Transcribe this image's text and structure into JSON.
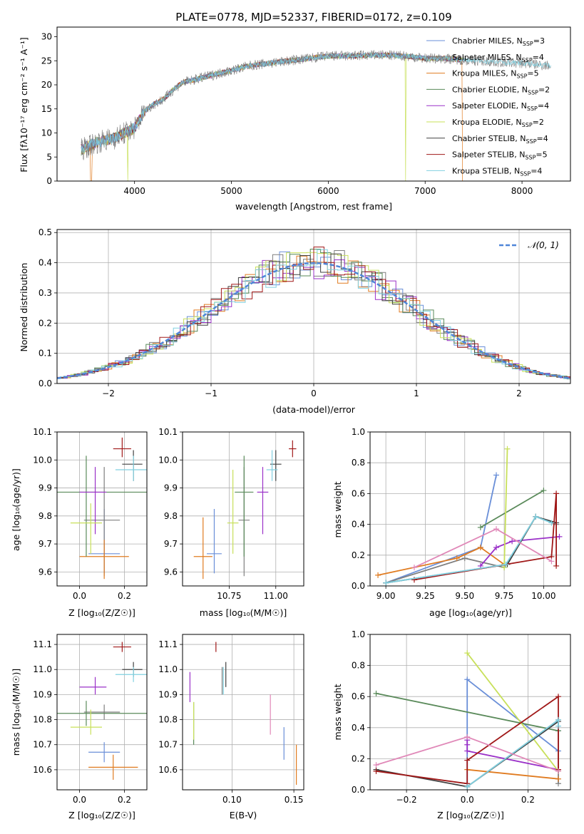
{
  "figure_title": "PLATE=0778, MJD=52337, FIBERID=0172, z=0.109",
  "models": [
    {
      "legend": "Chabrier MILES, N",
      "nssp": "=3",
      "color": "#6a8fd8"
    },
    {
      "legend": "Salpeter MILES, N",
      "nssp": "=4",
      "color": "#7f7f7f"
    },
    {
      "legend": "Kroupa MILES, N",
      "nssp": "=5",
      "color": "#e07b20"
    },
    {
      "legend": "Chabrier ELODIE, N",
      "nssp": "=2",
      "color": "#5a8a5a"
    },
    {
      "legend": "Salpeter ELODIE, N",
      "nssp": "=4",
      "color": "#9a30c8"
    },
    {
      "legend": "Kroupa ELODIE, N",
      "nssp": "=2",
      "color": "#c8e05a"
    },
    {
      "legend": "Chabrier STELIB, N",
      "nssp": "=4",
      "color": "#404040"
    },
    {
      "legend": "Salpeter STELIB, N",
      "nssp": "=5",
      "color": "#a01818"
    },
    {
      "legend": "Kroupa STELIB, N",
      "nssp": "=4",
      "color": "#80d0e0"
    }
  ],
  "ssp_subscript": "SSP",
  "chart_data": [
    {
      "id": "spectrum",
      "type": "line",
      "xlabel": "wavelength [Angstrom, rest frame]",
      "ylabel": "Flux [fλ10⁻¹⁷ erg cm⁻² s⁻¹ A⁻¹]",
      "xlim": [
        3200,
        8500
      ],
      "ylim": [
        0,
        32
      ],
      "xticks": [
        4000,
        5000,
        6000,
        7000,
        8000
      ],
      "yticks": [
        0,
        5,
        10,
        15,
        20,
        25,
        30
      ],
      "continuum": {
        "x": [
          3450,
          3600,
          3700,
          3800,
          3900,
          4000,
          4100,
          4200,
          4300,
          4400,
          4500,
          4600,
          4800,
          5000,
          5200,
          5400,
          5600,
          5800,
          6000,
          6200,
          6500,
          6800,
          7000,
          7200,
          7500,
          8000,
          8300
        ],
        "y": [
          6.5,
          8,
          8.5,
          9,
          10,
          11,
          14.5,
          16,
          17,
          19,
          20.5,
          21,
          22,
          23,
          24,
          24.5,
          25,
          25.5,
          26,
          26,
          26.2,
          26,
          25.5,
          25.5,
          25,
          24.5,
          24
        ]
      },
      "dips": [
        {
          "x": 3930,
          "y": 0
        },
        {
          "x": 6800,
          "y": 0
        },
        {
          "x": 7420,
          "y": 0
        }
      ]
    },
    {
      "id": "residuals",
      "type": "histogram",
      "xlabel": "(data-model)/error",
      "ylabel": "Normed distribution",
      "xlim": [
        -2.5,
        2.5
      ],
      "ylim": [
        0,
        0.51
      ],
      "bin_width": 0.1,
      "xticks": [
        -2,
        -1,
        0,
        1,
        2
      ],
      "yticks": [
        0.0,
        0.1,
        0.2,
        0.3,
        0.4,
        0.5
      ],
      "reference_curve": {
        "name": "𝒩(0, 1)",
        "mean": 0,
        "sigma": 1,
        "color": "#4f86d8"
      }
    },
    {
      "id": "age_vs_Z",
      "type": "errorbar",
      "xlabel": "Z [log₁₀(Z/Z☉)]",
      "ylabel": "age  [log₁₀(age/yr)]",
      "xlim": [
        -0.1,
        0.3
      ],
      "ylim": [
        9.55,
        10.1
      ],
      "xticks": [
        0.0,
        0.2
      ],
      "yticks": [
        9.6,
        9.7,
        9.8,
        9.9,
        10.0,
        10.1
      ],
      "points": [
        {
          "x": 0.11,
          "y": 9.665,
          "xerr": [
            0.07,
            0.07
          ],
          "yerr": [
            0.07,
            0.16
          ],
          "model": 0
        },
        {
          "x": 0.11,
          "y": 9.785,
          "xerr": [
            0.09,
            0.07
          ],
          "yerr": [
            0.2,
            0.19
          ],
          "model": 1
        },
        {
          "x": 0.11,
          "y": 9.655,
          "xerr": [
            0.11,
            0.11
          ],
          "yerr": [
            0.08,
            0.06
          ],
          "model": 2
        },
        {
          "x": 0.03,
          "y": 9.885,
          "xerr": [
            0.13,
            0.27
          ],
          "yerr": [
            0.23,
            0.13
          ],
          "model": 3
        },
        {
          "x": 0.07,
          "y": 9.885,
          "xerr": [
            0.07,
            0.05
          ],
          "yerr": [
            0.15,
            0.09
          ],
          "model": 4
        },
        {
          "x": 0.05,
          "y": 9.775,
          "xerr": [
            0.09,
            0.05
          ],
          "yerr": [
            0.11,
            0.07
          ],
          "model": 5
        },
        {
          "x": 0.24,
          "y": 9.985,
          "xerr": [
            0.05,
            0.04
          ],
          "yerr": [
            0.06,
            0.05
          ],
          "model": 6
        },
        {
          "x": 0.19,
          "y": 10.04,
          "xerr": [
            0.04,
            0.04
          ],
          "yerr": [
            0.03,
            0.04
          ],
          "model": 7
        },
        {
          "x": 0.24,
          "y": 9.965,
          "xerr": [
            0.08,
            0.06
          ],
          "yerr": [
            0.04,
            0.05
          ],
          "model": 8
        }
      ]
    },
    {
      "id": "age_vs_mass",
      "type": "errorbar",
      "xlabel": "mass [log₁₀(M/M☉)]",
      "ylabel": "",
      "xlim": [
        10.5,
        11.15
      ],
      "ylim": [
        9.55,
        10.1
      ],
      "xticks": [
        10.75,
        11.0
      ],
      "yticks": [
        9.6,
        9.7,
        9.8,
        9.9,
        10.0,
        10.1
      ],
      "points": [
        {
          "x": 10.67,
          "y": 9.665,
          "xerr": [
            0.04,
            0.04
          ],
          "yerr": [
            0.07,
            0.16
          ],
          "model": 0
        },
        {
          "x": 10.83,
          "y": 9.785,
          "xerr": [
            0.03,
            0.03
          ],
          "yerr": [
            0.2,
            0.19
          ],
          "model": 1
        },
        {
          "x": 10.61,
          "y": 9.655,
          "xerr": [
            0.05,
            0.05
          ],
          "yerr": [
            0.08,
            0.14
          ],
          "model": 2
        },
        {
          "x": 10.83,
          "y": 9.885,
          "xerr": [
            0.05,
            0.05
          ],
          "yerr": [
            0.23,
            0.13
          ],
          "model": 3
        },
        {
          "x": 10.93,
          "y": 9.885,
          "xerr": [
            0.03,
            0.03
          ],
          "yerr": [
            0.15,
            0.09
          ],
          "model": 4
        },
        {
          "x": 10.77,
          "y": 9.775,
          "xerr": [
            0.03,
            0.03
          ],
          "yerr": [
            0.11,
            0.19
          ],
          "model": 5
        },
        {
          "x": 11.0,
          "y": 9.985,
          "xerr": [
            0.03,
            0.03
          ],
          "yerr": [
            0.06,
            0.05
          ],
          "model": 6
        },
        {
          "x": 11.09,
          "y": 10.04,
          "xerr": [
            0.02,
            0.02
          ],
          "yerr": [
            0.03,
            0.03
          ],
          "model": 7
        },
        {
          "x": 10.98,
          "y": 9.965,
          "xerr": [
            0.03,
            0.03
          ],
          "yerr": [
            0.04,
            0.07
          ],
          "model": 8
        }
      ]
    },
    {
      "id": "mass_weight_vs_age",
      "type": "line",
      "xlabel": "age  [log₁₀(age/yr)]",
      "ylabel": "mass weight",
      "xlim": [
        8.9,
        10.17
      ],
      "ylim": [
        0,
        1.0
      ],
      "xticks": [
        9.0,
        9.25,
        9.5,
        9.75,
        10.0
      ],
      "yticks": [
        0.0,
        0.2,
        0.4,
        0.6,
        0.8,
        1.0
      ],
      "series": [
        {
          "model": 0,
          "x": [
            9.0,
            9.6,
            9.7
          ],
          "y": [
            0.02,
            0.25,
            0.72
          ]
        },
        {
          "model": 1,
          "x": [
            9.0,
            9.5,
            9.75,
            9.95,
            10.08
          ],
          "y": [
            0.02,
            0.18,
            0.12,
            0.45,
            0.4
          ]
        },
        {
          "model": 2,
          "x": [
            8.95,
            9.45,
            9.6,
            9.75
          ],
          "y": [
            0.07,
            0.18,
            0.25,
            0.14
          ]
        },
        {
          "model": 3,
          "x": [
            9.6,
            10.0
          ],
          "y": [
            0.38,
            0.62
          ]
        },
        {
          "model": 4,
          "x": [
            9.6,
            9.7,
            9.8,
            10.1
          ],
          "y": [
            0.13,
            0.25,
            0.29,
            0.32
          ]
        },
        {
          "model": 5,
          "x": [
            9.75,
            9.77
          ],
          "y": [
            0.12,
            0.89
          ]
        },
        {
          "model": 6,
          "x": [
            9.0,
            9.77,
            9.95,
            10.08
          ],
          "y": [
            0.02,
            0.14,
            0.45,
            0.41
          ]
        },
        {
          "model": 7,
          "x": [
            9.18,
            10.05,
            10.08,
            10.08
          ],
          "y": [
            0.04,
            0.19,
            0.6,
            0.13
          ]
        },
        {
          "model": 8,
          "x": [
            9.0,
            9.76,
            9.95,
            10.05
          ],
          "y": [
            0.02,
            0.14,
            0.45,
            0.41
          ]
        },
        {
          "color": "#e088b8",
          "x": [
            9.18,
            9.7,
            10.05
          ],
          "y": [
            0.12,
            0.37,
            0.16
          ]
        }
      ]
    },
    {
      "id": "mass_vs_Z",
      "type": "errorbar",
      "xlabel": "Z [log₁₀(Z/Z☉)]",
      "ylabel": "mass [log₁₀(M/M☉)]",
      "xlim": [
        -0.1,
        0.3
      ],
      "ylim": [
        10.52,
        11.14
      ],
      "xticks": [
        0.0,
        0.2
      ],
      "yticks": [
        10.6,
        10.7,
        10.8,
        10.9,
        11.0,
        11.1
      ],
      "points": [
        {
          "x": 0.11,
          "y": 10.67,
          "xerr": [
            0.07,
            0.07
          ],
          "yerr": [
            0.04,
            0.04
          ],
          "model": 0
        },
        {
          "x": 0.11,
          "y": 10.83,
          "xerr": [
            0.09,
            0.07
          ],
          "yerr": [
            0.03,
            0.03
          ],
          "model": 1
        },
        {
          "x": 0.15,
          "y": 10.61,
          "xerr": [
            0.11,
            0.11
          ],
          "yerr": [
            0.05,
            0.05
          ],
          "model": 2
        },
        {
          "x": 0.03,
          "y": 10.825,
          "xerr": [
            0.13,
            0.27
          ],
          "yerr": [
            0.05,
            0.05
          ],
          "model": 3
        },
        {
          "x": 0.07,
          "y": 10.93,
          "xerr": [
            0.07,
            0.05
          ],
          "yerr": [
            0.03,
            0.04
          ],
          "model": 4
        },
        {
          "x": 0.05,
          "y": 10.77,
          "xerr": [
            0.09,
            0.05
          ],
          "yerr": [
            0.03,
            0.07
          ],
          "model": 5
        },
        {
          "x": 0.24,
          "y": 11.0,
          "xerr": [
            0.05,
            0.04
          ],
          "yerr": [
            0.03,
            0.03
          ],
          "model": 6
        },
        {
          "x": 0.19,
          "y": 11.09,
          "xerr": [
            0.04,
            0.04
          ],
          "yerr": [
            0.02,
            0.02
          ],
          "model": 7
        },
        {
          "x": 0.24,
          "y": 10.98,
          "xerr": [
            0.08,
            0.06
          ],
          "yerr": [
            0.03,
            0.03
          ],
          "model": 8
        }
      ]
    },
    {
      "id": "mass_vs_ebv",
      "type": "errorbar",
      "xlabel": "E(B-V)",
      "ylabel": "",
      "xlim": [
        0.06,
        0.158
      ],
      "ylim": [
        10.52,
        11.14
      ],
      "xticks": [
        0.1,
        0.15
      ],
      "yticks": [
        10.6,
        10.7,
        10.8,
        10.9,
        11.0,
        11.1
      ],
      "points": [
        {
          "x": 0.142,
          "y": 10.7,
          "yerr": [
            0.06,
            0.07
          ],
          "model": 0
        },
        {
          "x": 0.092,
          "y": 10.95,
          "yerr": [
            0.05,
            0.06
          ],
          "model": 1
        },
        {
          "x": 0.152,
          "y": 10.62,
          "yerr": [
            0.08,
            0.08
          ],
          "model": 2
        },
        {
          "x": 0.069,
          "y": 10.78,
          "yerr": [
            0.08,
            0.09
          ],
          "model": 3
        },
        {
          "x": 0.066,
          "y": 10.93,
          "yerr": [
            0.06,
            0.06
          ],
          "model": 4
        },
        {
          "x": 0.069,
          "y": 10.8,
          "yerr": [
            0.08,
            0.07
          ],
          "model": 5
        },
        {
          "x": 0.095,
          "y": 10.98,
          "yerr": [
            0.05,
            0.05
          ],
          "model": 6
        },
        {
          "x": 0.087,
          "y": 11.09,
          "yerr": [
            0.02,
            0.02
          ],
          "model": 7
        },
        {
          "x": 0.093,
          "y": 10.95,
          "yerr": [
            0.05,
            0.06
          ],
          "model": 8
        },
        {
          "x": 0.131,
          "y": 10.82,
          "yerr": [
            0.08,
            0.08
          ],
          "color": "#e088b8"
        }
      ]
    },
    {
      "id": "mass_weight_vs_Z",
      "type": "line",
      "xlabel": "Z [log₁₀(Z/Z☉)]",
      "ylabel": "mass weight",
      "xlim": [
        -0.32,
        0.34
      ],
      "ylim": [
        0,
        1.0
      ],
      "xticks": [
        -0.2,
        0.0,
        0.2
      ],
      "yticks": [
        0.0,
        0.2,
        0.4,
        0.6,
        0.8,
        1.0
      ],
      "series": [
        {
          "model": 0,
          "x": [
            0.0,
            0.0,
            0.3,
            0.3
          ],
          "y": [
            0.02,
            0.71,
            0.25,
            0.38
          ]
        },
        {
          "model": 1,
          "x": [
            0.0,
            0.3,
            0.3
          ],
          "y": [
            0.02,
            0.45,
            0.04
          ]
        },
        {
          "model": 2,
          "x": [
            0.0,
            0.3
          ],
          "y": [
            0.13,
            0.07
          ]
        },
        {
          "model": 3,
          "x": [
            -0.3,
            0.3
          ],
          "y": [
            0.62,
            0.38
          ]
        },
        {
          "model": 4,
          "x": [
            0.0,
            0.0,
            0.0,
            0.3
          ],
          "y": [
            0.29,
            0.32,
            0.25,
            0.13
          ]
        },
        {
          "model": 5,
          "x": [
            0.0,
            0.3
          ],
          "y": [
            0.88,
            0.12
          ]
        },
        {
          "model": 6,
          "x": [
            -0.3,
            0.0,
            0.3
          ],
          "y": [
            0.13,
            0.02,
            0.44
          ]
        },
        {
          "model": 7,
          "x": [
            -0.3,
            0.0,
            0.0,
            0.3,
            0.3
          ],
          "y": [
            0.12,
            0.04,
            0.19,
            0.6,
            0.13
          ]
        },
        {
          "model": 8,
          "x": [
            0.0,
            0.3,
            0.3
          ],
          "y": [
            0.02,
            0.45,
            0.41
          ]
        },
        {
          "color": "#e088b8",
          "x": [
            -0.3,
            0.0,
            0.3
          ],
          "y": [
            0.16,
            0.34,
            0.12
          ]
        }
      ]
    }
  ]
}
